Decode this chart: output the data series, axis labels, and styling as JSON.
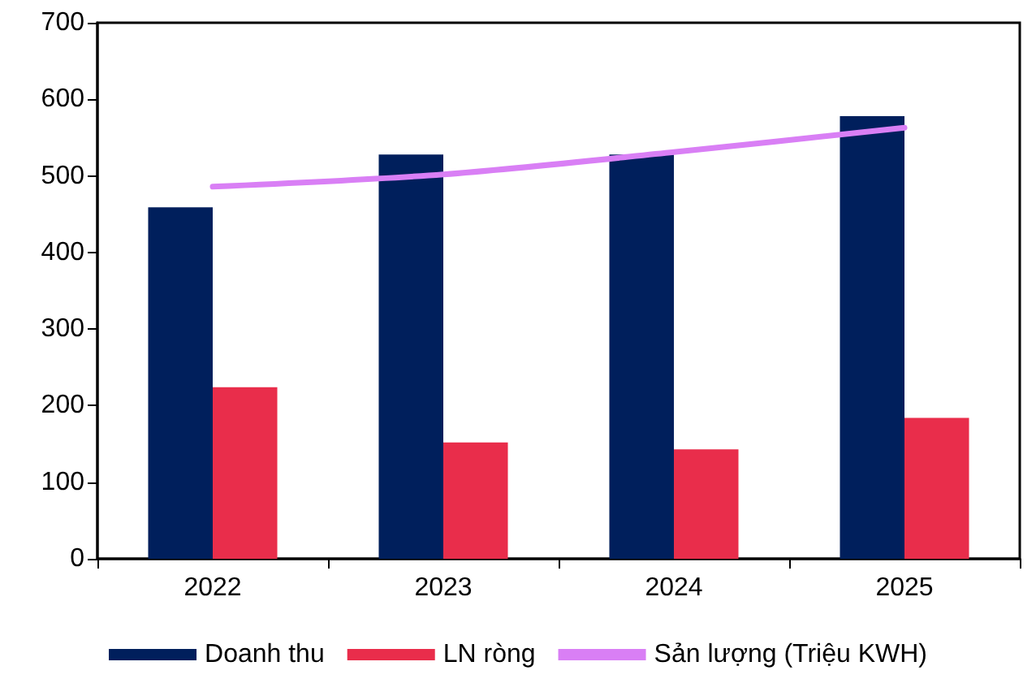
{
  "chart_data": {
    "type": "bar",
    "categories": [
      "2022",
      "2023",
      "2024",
      "2025"
    ],
    "series": [
      {
        "name": "Doanh thu",
        "color": "#001f5c",
        "values": [
          459,
          528,
          528,
          578
        ]
      },
      {
        "name": "LN ròng",
        "color": "#e92d4b",
        "values": [
          224,
          152,
          143,
          184
        ]
      },
      {
        "name": "Sản lượng (Triệu KWH)",
        "type": "line",
        "color": "#d97ff5",
        "values": [
          486,
          502,
          531,
          563
        ]
      }
    ],
    "ylim": [
      0,
      700
    ],
    "yticks": [
      0,
      100,
      200,
      300,
      400,
      500,
      600,
      700
    ],
    "grid": false,
    "legend": "bottom",
    "marker": "none",
    "line_style": "solid"
  }
}
